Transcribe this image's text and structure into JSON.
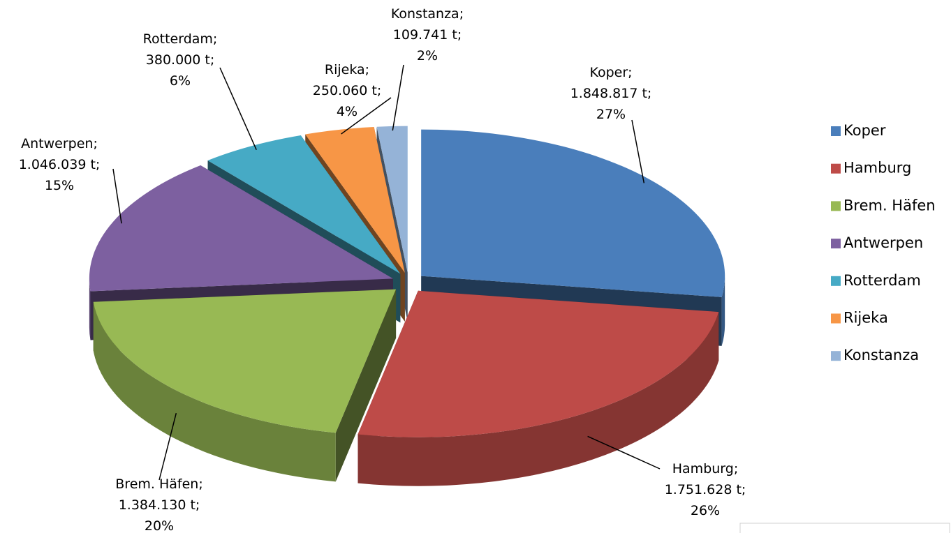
{
  "chart_data": {
    "type": "pie3d",
    "categories": [
      "Koper",
      "Hamburg",
      "Brem. Häfen",
      "Antwerpen",
      "Rotterdam",
      "Rijeka",
      "Konstanza"
    ],
    "values": [
      1848817,
      1751628,
      1384130,
      1046039,
      380000,
      250060,
      109741
    ],
    "value_labels": [
      "1.848.817 t",
      "1.751.628 t",
      "1.384.130 t",
      "1.046.039 t",
      "380.000 t",
      "250.060 t",
      "109.741 t"
    ],
    "percent_labels": [
      "27%",
      "26%",
      "20%",
      "15%",
      "6%",
      "4%",
      "2%"
    ],
    "label_separator": ";",
    "colors": [
      "#4a7ebb",
      "#be4b48",
      "#98b954",
      "#7d60a0",
      "#46aac5",
      "#f79646",
      "#95b3d7"
    ],
    "legend": "right"
  }
}
